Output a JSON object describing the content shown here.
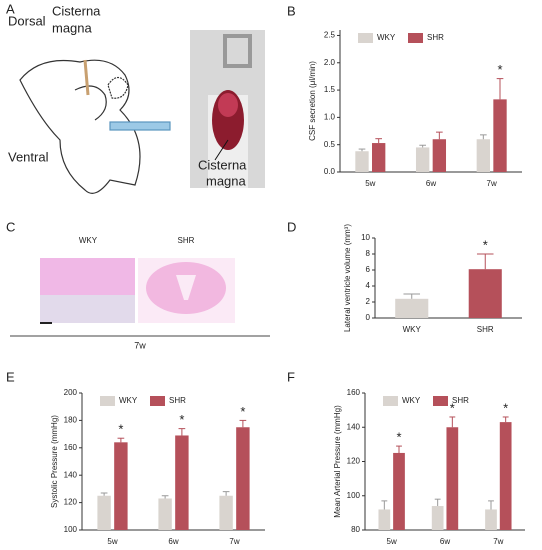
{
  "panels": {
    "letters": [
      "A",
      "B",
      "C",
      "D",
      "E",
      "F"
    ],
    "a_dorsal": "Dorsal",
    "a_ventral": "Ventral",
    "a_cisterna_top": [
      "Cisterna",
      "magna"
    ],
    "a_cisterna_photo": [
      "Cisterna",
      "magna"
    ],
    "c_left": "WKY",
    "c_right": "SHR",
    "c_xlabel": "7w"
  },
  "chart_data": [
    {
      "type": "bar",
      "ylabel": "CSF secretion (μl/min)",
      "categories": [
        "5w",
        "6w",
        "7w"
      ],
      "series": [
        {
          "name": "WKY",
          "color": "#d9d4cf",
          "values": [
            0.38,
            0.45,
            0.6
          ],
          "errors": [
            0.04,
            0.04,
            0.08
          ]
        },
        {
          "name": "SHR",
          "color": "#b5505a",
          "values": [
            0.53,
            0.6,
            1.33
          ],
          "errors": [
            0.08,
            0.13,
            0.38
          ],
          "annotations": [
            null,
            null,
            "*"
          ]
        }
      ],
      "ylim": [
        0,
        2.6
      ],
      "yticks": [
        {
          "value": 0,
          "label": "0.0"
        },
        0.5,
        {
          "value": 1,
          "label": "1.0"
        },
        1.5,
        {
          "value": 2,
          "label": "2.0"
        },
        2.5
      ]
    },
    {
      "type": "bar",
      "ylabel": "Lateral ventricle volume (mm³)",
      "categories": [
        "WKY",
        "SHR"
      ],
      "values": [
        2.4,
        6.1
      ],
      "errors": [
        0.6,
        1.9
      ],
      "colors": [
        "#d9d4cf",
        "#b5505a"
      ],
      "annotations": [
        null,
        "*"
      ],
      "ylim": [
        0,
        10
      ],
      "yticks": [
        0,
        2,
        4,
        6,
        8,
        10
      ]
    },
    {
      "type": "bar",
      "ylabel": "Systolic Pressure (mmHg)",
      "categories": [
        "5w",
        "6w",
        "7w"
      ],
      "series": [
        {
          "name": "WKY",
          "color": "#d9d4cf",
          "values": [
            125,
            123,
            125
          ],
          "errors": [
            2,
            2,
            3
          ]
        },
        {
          "name": "SHR",
          "color": "#b5505a",
          "values": [
            164,
            169,
            175
          ],
          "errors": [
            3,
            5,
            5
          ],
          "annotations": [
            "*",
            "*",
            "*"
          ]
        }
      ],
      "ylim": [
        100,
        200
      ],
      "yticks": [
        100,
        120,
        140,
        160,
        180,
        200
      ]
    },
    {
      "type": "bar",
      "ylabel": "Mean Arterial Pressure (mmHg)",
      "categories": [
        "5w",
        "6w",
        "7w"
      ],
      "series": [
        {
          "name": "WKY",
          "color": "#d9d4cf",
          "values": [
            92,
            94,
            92
          ],
          "errors": [
            5,
            4,
            5
          ]
        },
        {
          "name": "SHR",
          "color": "#b5505a",
          "values": [
            125,
            140,
            143
          ],
          "errors": [
            4,
            6,
            3
          ],
          "annotations": [
            "*",
            "*",
            "*"
          ]
        }
      ],
      "ylim": [
        80,
        160
      ],
      "yticks": [
        80,
        100,
        120,
        140,
        160
      ]
    }
  ]
}
